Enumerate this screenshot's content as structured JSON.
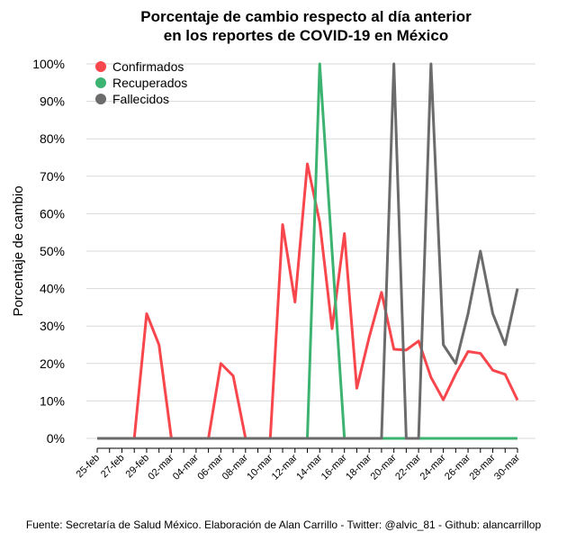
{
  "chart_data": {
    "type": "line",
    "title": [
      "Porcentaje de cambio respecto al día anterior",
      "en los reportes de COVID-19 en México"
    ],
    "ylabel": "Porcentaje de cambio",
    "source": "Fuente: Secretaría de Salud México. Elaboración de Alan Carrillo - Twitter: @alvic_81 - Github: alancarrillop",
    "categories": [
      "25-feb",
      null,
      "27-feb",
      null,
      "29-feb",
      null,
      "02-mar",
      null,
      "04-mar",
      null,
      "06-mar",
      null,
      "08-mar",
      null,
      "10-mar",
      null,
      "12-mar",
      null,
      "14-mar",
      null,
      "16-mar",
      null,
      "18-mar",
      null,
      "20-mar",
      null,
      "22-mar",
      null,
      "24-mar",
      null,
      "26-mar",
      null,
      "28-mar",
      null,
      "30-mar"
    ],
    "series": [
      {
        "name": "Confirmados",
        "color": "#f8464d",
        "values": [
          0,
          0,
          0,
          0,
          33.3,
          25,
          0,
          0,
          0,
          0,
          20,
          16.7,
          0,
          0,
          0,
          57.1,
          36.4,
          73.3,
          57.7,
          29.3,
          54.7,
          13.4,
          27,
          39,
          23.8,
          23.6,
          26,
          16.3,
          10.3,
          17.2,
          23.2,
          22.7,
          18.2,
          17.1,
          10.2
        ]
      },
      {
        "name": "Recuperados",
        "color": "#3cb371",
        "values": [
          0,
          0,
          0,
          0,
          0,
          0,
          0,
          0,
          0,
          0,
          0,
          0,
          0,
          0,
          0,
          0,
          0,
          0,
          100,
          50,
          0,
          0,
          0,
          0,
          0,
          0,
          0,
          0,
          0,
          0,
          0,
          0,
          0,
          0,
          0
        ]
      },
      {
        "name": "Fallecidos",
        "color": "#6b6b6b",
        "values": [
          0,
          0,
          0,
          0,
          0,
          0,
          0,
          0,
          0,
          0,
          0,
          0,
          0,
          0,
          0,
          0,
          0,
          0,
          0,
          0,
          0,
          0,
          0,
          0,
          100,
          0,
          0,
          100,
          25,
          20,
          33.3,
          50,
          33.3,
          25,
          40
        ]
      }
    ],
    "ylim": [
      0,
      100
    ],
    "yticks": [
      {
        "value": 0,
        "label": "0%"
      },
      {
        "value": 10,
        "label": "10%"
      },
      {
        "value": 20,
        "label": "20%"
      },
      {
        "value": 30,
        "label": "30%"
      },
      {
        "value": 40,
        "label": "40%"
      },
      {
        "value": 50,
        "label": "50%"
      },
      {
        "value": 60,
        "label": "60%"
      },
      {
        "value": 70,
        "label": "70%"
      },
      {
        "value": 80,
        "label": "80%"
      },
      {
        "value": 90,
        "label": "90%"
      },
      {
        "value": 100,
        "label": "100%"
      }
    ],
    "grid": true,
    "legend": "top-left"
  }
}
